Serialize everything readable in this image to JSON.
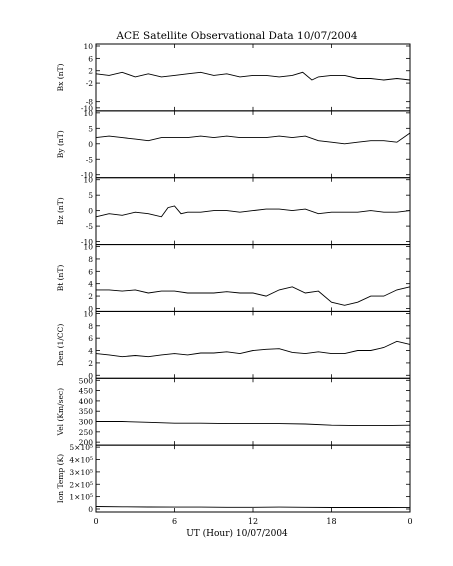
{
  "chart_data": {
    "type": "line",
    "title": "ACE Satellite Observational Data   10/07/2004",
    "xlabel": "UT (Hour)   10/07/2004",
    "xlim": [
      0,
      24
    ],
    "x_tick_labels": [
      "0",
      "6",
      "12",
      "18",
      "0"
    ],
    "grid": false,
    "panels": [
      {
        "ylabel": "Bx (nT)",
        "ylim": [
          -10,
          10
        ],
        "y_ticks": [
          -10,
          -8,
          -2,
          2,
          6,
          10
        ],
        "y_tick_labels": [
          "-10",
          "-8",
          "-2",
          "2",
          "6",
          "10"
        ],
        "x": [
          0,
          1,
          2,
          3,
          4,
          5,
          6,
          7,
          8,
          9,
          10,
          11,
          12,
          13,
          14,
          15,
          15.8,
          16.5,
          17,
          18,
          19,
          20,
          21,
          22,
          23,
          24
        ],
        "values": [
          1.0,
          0.5,
          1.5,
          0.0,
          1.0,
          0.0,
          0.5,
          1.0,
          1.5,
          0.5,
          1.0,
          0.0,
          0.5,
          0.5,
          0.0,
          0.5,
          1.5,
          -1.0,
          0.0,
          0.5,
          0.5,
          -0.5,
          -0.5,
          -1.0,
          -0.5,
          -1.0
        ]
      },
      {
        "ylabel": "By (nT)",
        "ylim": [
          -10,
          10
        ],
        "y_ticks": [
          -10,
          -5,
          0,
          5,
          10
        ],
        "y_tick_labels": [
          "-10",
          "-5",
          "0",
          "5",
          "10"
        ],
        "x": [
          0,
          1,
          2,
          3,
          4,
          5,
          6,
          7,
          8,
          9,
          10,
          11,
          12,
          13,
          14,
          15,
          16,
          17,
          18,
          19,
          20,
          21,
          22,
          23,
          24
        ],
        "values": [
          2.0,
          2.5,
          2.0,
          1.5,
          1.0,
          2.0,
          2.0,
          2.0,
          2.5,
          2.0,
          2.5,
          2.0,
          2.0,
          2.0,
          2.5,
          2.0,
          2.5,
          1.0,
          0.5,
          0.0,
          0.5,
          1.0,
          1.0,
          0.5,
          3.5
        ]
      },
      {
        "ylabel": "Bz (nT)",
        "ylim": [
          -10,
          10
        ],
        "y_ticks": [
          -10,
          -5,
          0,
          5,
          10
        ],
        "y_tick_labels": [
          "-10",
          "-5",
          "0",
          "5",
          "10"
        ],
        "x": [
          0,
          1,
          2,
          3,
          4,
          5,
          5.5,
          6,
          6.5,
          7,
          8,
          9,
          10,
          11,
          12,
          13,
          14,
          15,
          16,
          17,
          18,
          19,
          20,
          21,
          22,
          23,
          24
        ],
        "values": [
          -2.0,
          -1.0,
          -1.5,
          -0.5,
          -1.0,
          -2.0,
          1.0,
          1.5,
          -1.0,
          -0.5,
          -0.5,
          0.0,
          0.0,
          -0.5,
          0.0,
          0.5,
          0.5,
          0.0,
          0.5,
          -1.0,
          -0.5,
          -0.5,
          -0.5,
          0.0,
          -0.5,
          -0.5,
          0.0
        ]
      },
      {
        "ylabel": "Bt (nT)",
        "ylim": [
          0,
          10
        ],
        "y_ticks": [
          0,
          2,
          4,
          6,
          8,
          10
        ],
        "y_tick_labels": [
          "0",
          "2",
          "4",
          "6",
          "8",
          "10"
        ],
        "x": [
          0,
          1,
          2,
          3,
          4,
          5,
          6,
          7,
          8,
          9,
          10,
          11,
          12,
          13,
          14,
          15,
          16,
          17,
          18,
          19,
          20,
          21,
          22,
          23,
          24
        ],
        "values": [
          3.0,
          3.0,
          2.8,
          3.0,
          2.5,
          2.8,
          2.8,
          2.5,
          2.5,
          2.5,
          2.7,
          2.5,
          2.5,
          2.0,
          3.0,
          3.5,
          2.5,
          2.8,
          1.0,
          0.5,
          1.0,
          2.0,
          2.0,
          3.0,
          3.5
        ]
      },
      {
        "ylabel": "Den (1/CC)",
        "ylim": [
          0,
          10
        ],
        "y_ticks": [
          0,
          2,
          4,
          6,
          8,
          10
        ],
        "y_tick_labels": [
          "0",
          "2",
          "4",
          "6",
          "8",
          "10"
        ],
        "x": [
          0,
          1,
          2,
          3,
          4,
          5,
          6,
          7,
          8,
          9,
          10,
          11,
          12,
          13,
          14,
          15,
          16,
          17,
          18,
          19,
          20,
          21,
          22,
          23,
          24
        ],
        "values": [
          3.5,
          3.3,
          3.0,
          3.2,
          3.0,
          3.3,
          3.5,
          3.3,
          3.6,
          3.6,
          3.8,
          3.5,
          4.0,
          4.2,
          4.3,
          3.7,
          3.5,
          3.8,
          3.5,
          3.5,
          4.0,
          4.0,
          4.5,
          5.5,
          5.0
        ]
      },
      {
        "ylabel": "Vel (Km/sec)",
        "ylim": [
          200,
          500
        ],
        "y_ticks": [
          200,
          250,
          300,
          350,
          400,
          450,
          500
        ],
        "y_tick_labels": [
          "200",
          "250",
          "300",
          "350",
          "400",
          "450",
          "500"
        ],
        "x": [
          0,
          2,
          4,
          6,
          8,
          10,
          12,
          14,
          16,
          18,
          20,
          22,
          24
        ],
        "values": [
          300,
          300,
          296,
          292,
          292,
          290,
          290,
          290,
          288,
          282,
          280,
          280,
          282
        ]
      },
      {
        "ylabel": "Ion Temp (K)",
        "ylim": [
          0,
          500000
        ],
        "y_ticks": [
          0,
          100000,
          200000,
          300000,
          400000,
          500000
        ],
        "y_tick_labels": [
          "0",
          "1×10⁵",
          "2×10⁵",
          "3×10⁵",
          "4×10⁵",
          "5×10⁵"
        ],
        "x": [
          0,
          2,
          4,
          6,
          8,
          10,
          12,
          14,
          16,
          18,
          20,
          22,
          24
        ],
        "values": [
          20000,
          18000,
          16000,
          15000,
          15000,
          14000,
          14000,
          15000,
          14000,
          12000,
          12000,
          12000,
          13000
        ]
      }
    ]
  }
}
